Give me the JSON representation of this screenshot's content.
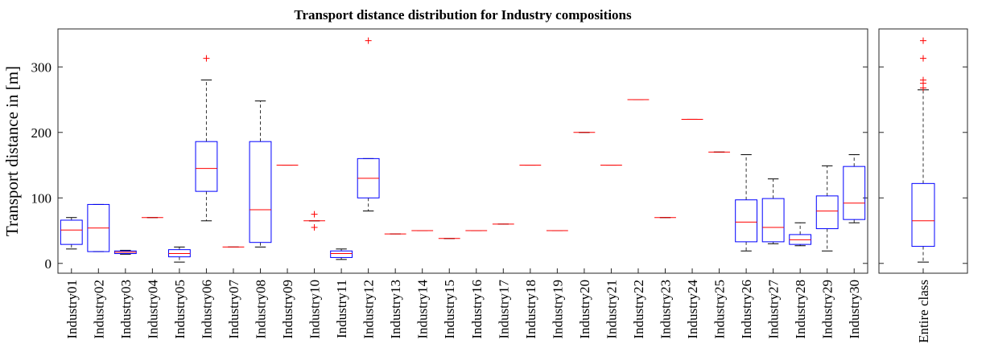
{
  "chart_data": [
    {
      "type": "box",
      "title": "Transport distance distribution for Industry compositions",
      "y_label": "Transport distance in [m]",
      "ylim": [
        -15,
        358
      ],
      "yticks": [
        0,
        100,
        200,
        300
      ],
      "box_color": "#0000ff",
      "median_color": "#ff0000",
      "outlier_color": "#ff0000",
      "categories": [
        "Industry01",
        "Industry02",
        "Industry03",
        "Industry04",
        "Industry05",
        "Industry06",
        "Industry07",
        "Industry08",
        "Industry09",
        "Industry10",
        "Industry11",
        "Industry12",
        "Industry13",
        "Industry14",
        "Industry15",
        "Industry16",
        "Industry17",
        "Industry18",
        "Industry19",
        "Industry20",
        "Industry21",
        "Industry22",
        "Industry23",
        "Industry24",
        "Industry25",
        "Industry26",
        "Industry27",
        "Industry28",
        "Industry29",
        "Industry30"
      ],
      "min": [
        22,
        18,
        14,
        70,
        2,
        65,
        25,
        25,
        150,
        65,
        6,
        80,
        45,
        50,
        38,
        50,
        60,
        150,
        50,
        200,
        150,
        250,
        70,
        220,
        170,
        19,
        30,
        27,
        19,
        62
      ],
      "q1": [
        29,
        18,
        15,
        70,
        10,
        110,
        25,
        32,
        150,
        65,
        9,
        100,
        45,
        50,
        38,
        50,
        60,
        150,
        50,
        200,
        150,
        250,
        70,
        220,
        170,
        33,
        33,
        29,
        53,
        67
      ],
      "median": [
        51,
        54,
        17,
        70,
        15,
        145,
        25,
        82,
        150,
        65,
        15,
        130,
        45,
        50,
        38,
        50,
        60,
        150,
        50,
        200,
        150,
        250,
        70,
        220,
        170,
        63,
        55,
        36,
        80,
        92
      ],
      "q3": [
        66,
        90,
        19,
        70,
        21,
        186,
        25,
        186,
        150,
        65,
        19,
        160,
        45,
        50,
        38,
        50,
        60,
        150,
        50,
        200,
        150,
        250,
        70,
        220,
        170,
        97,
        99,
        44,
        103,
        148
      ],
      "max": [
        70,
        90,
        20,
        70,
        25,
        280,
        25,
        248,
        150,
        65,
        22,
        160,
        45,
        50,
        38,
        50,
        60,
        150,
        50,
        200,
        150,
        250,
        70,
        220,
        170,
        166,
        129,
        62,
        149,
        166
      ],
      "outliers": [
        [],
        [],
        [],
        [],
        [],
        [
          313
        ],
        [],
        [],
        [],
        [
          75,
          55
        ],
        [],
        [
          340
        ],
        [],
        [],
        [],
        [],
        [],
        [],
        [],
        [],
        [],
        [],
        [],
        [],
        [],
        [],
        [],
        [],
        [],
        []
      ]
    },
    {
      "type": "box",
      "ylim": [
        -15,
        358
      ],
      "yticks": [
        0,
        100,
        200,
        300
      ],
      "box_color": "#0000ff",
      "median_color": "#ff0000",
      "outlier_color": "#ff0000",
      "categories": [
        "Entire class"
      ],
      "min": [
        2
      ],
      "q1": [
        26
      ],
      "median": [
        65
      ],
      "q3": [
        122
      ],
      "max": [
        265
      ],
      "outliers": [
        [
          268,
          275,
          280,
          313,
          340
        ]
      ]
    }
  ]
}
